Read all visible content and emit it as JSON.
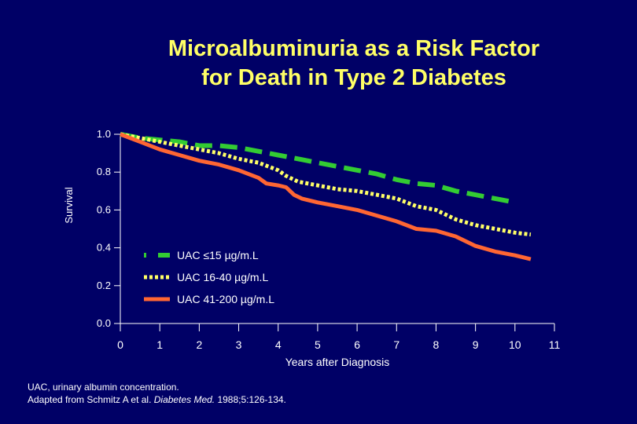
{
  "title_lines": [
    "Microalbuminuria as a Risk Factor",
    "for Death in Type 2 Diabetes"
  ],
  "footnote": {
    "line1": "UAC, urinary albumin concentration.",
    "line2_prefix": "Adapted from Schmitz A et al. ",
    "line2_journal": "Diabetes Med.",
    "line2_suffix": " 1988;5:126-134."
  },
  "chart_data": {
    "type": "line",
    "title": "Microalbuminuria as a Risk Factor for Death in Type 2 Diabetes",
    "xlabel": "Years after Diagnosis",
    "ylabel": "Survival",
    "xlim": [
      0,
      11
    ],
    "ylim": [
      0,
      1.0
    ],
    "x_ticks": [
      0,
      1,
      2,
      3,
      4,
      5,
      6,
      7,
      8,
      9,
      10,
      11
    ],
    "x_tick_labels": [
      "0",
      "1",
      "2",
      "3",
      "4",
      "5",
      "6",
      "7",
      "8",
      "9",
      "10",
      "11"
    ],
    "y_ticks": [
      0,
      0.2,
      0.4,
      0.6,
      0.8,
      1.0
    ],
    "y_tick_labels": [
      "0.0",
      "0.2",
      "0.4",
      "0.6",
      "0.8",
      "1.0"
    ],
    "grid": false,
    "legend_position": "center",
    "series": [
      {
        "name": "UAC ≤15 µg/m.L",
        "color": "#33cc33",
        "style": "long-dash",
        "x": [
          0,
          0.5,
          1,
          1.5,
          2,
          2.5,
          3,
          3.5,
          4,
          4.5,
          5,
          5.5,
          6,
          6.5,
          7,
          7.5,
          8,
          8.5,
          9,
          9.5,
          10
        ],
        "y": [
          1.0,
          0.98,
          0.97,
          0.96,
          0.94,
          0.94,
          0.93,
          0.91,
          0.89,
          0.87,
          0.85,
          0.83,
          0.81,
          0.79,
          0.76,
          0.74,
          0.73,
          0.7,
          0.68,
          0.66,
          0.64
        ]
      },
      {
        "name": "UAC 16-40 µg/m.L",
        "color": "#ffff66",
        "style": "dotted",
        "x": [
          0,
          0.5,
          1,
          1.5,
          2,
          2.5,
          3,
          3.5,
          4,
          4.2,
          4.5,
          5,
          5.5,
          6,
          6.5,
          7,
          7.5,
          8,
          8.5,
          9,
          9.5,
          10,
          10.4
        ],
        "y": [
          1.0,
          0.98,
          0.96,
          0.94,
          0.92,
          0.9,
          0.87,
          0.85,
          0.81,
          0.78,
          0.75,
          0.73,
          0.71,
          0.7,
          0.68,
          0.66,
          0.62,
          0.6,
          0.55,
          0.52,
          0.5,
          0.48,
          0.47
        ]
      },
      {
        "name": "UAC 41-200 µg/m.L",
        "color": "#ff6633",
        "style": "solid",
        "x": [
          0,
          0.5,
          1,
          1.5,
          2,
          2.5,
          3,
          3.5,
          3.7,
          4,
          4.2,
          4.4,
          4.6,
          5,
          5.5,
          6,
          6.5,
          7,
          7.5,
          8,
          8.5,
          9,
          9.5,
          10,
          10.4
        ],
        "y": [
          1.0,
          0.96,
          0.92,
          0.89,
          0.86,
          0.84,
          0.81,
          0.77,
          0.74,
          0.73,
          0.72,
          0.68,
          0.66,
          0.64,
          0.62,
          0.6,
          0.57,
          0.54,
          0.5,
          0.49,
          0.46,
          0.41,
          0.38,
          0.36,
          0.34
        ]
      }
    ]
  }
}
